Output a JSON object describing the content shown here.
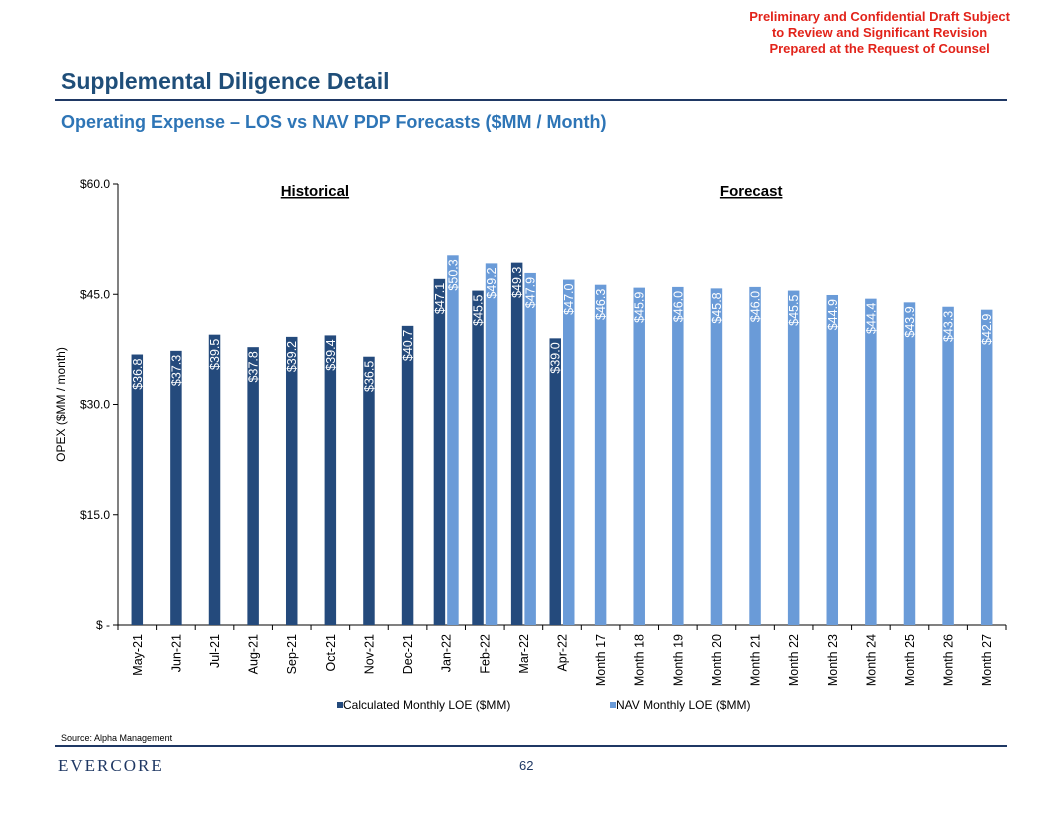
{
  "header": {
    "confidential_lines": [
      "Preliminary and Confidential Draft Subject",
      "to Review and Significant Revision",
      "Prepared at the Request of Counsel"
    ],
    "title": "Supplemental Diligence Detail",
    "subtitle": "Operating Expense – LOS vs NAV PDP Forecasts ($MM / Month)"
  },
  "chart_data": {
    "type": "bar",
    "ylabel": "OPEX ($MM / month)",
    "ylim": [
      0,
      60
    ],
    "yticks": [
      0,
      15,
      30,
      45,
      60
    ],
    "ytick_labels": [
      "$ -",
      "$15.0",
      "$30.0",
      "$45.0",
      "$60.0"
    ],
    "section_labels": [
      "Historical",
      "Forecast"
    ],
    "categories": [
      "May-21",
      "Jun-21",
      "Jul-21",
      "Aug-21",
      "Sep-21",
      "Oct-21",
      "Nov-21",
      "Dec-21",
      "Jan-22",
      "Feb-22",
      "Mar-22",
      "Apr-22",
      "Month 17",
      "Month 18",
      "Month 19",
      "Month 20",
      "Month 21",
      "Month 22",
      "Month 23",
      "Month 24",
      "Month 25",
      "Month 26",
      "Month 27"
    ],
    "series": [
      {
        "name": "Calculated Monthly LOE ($MM)",
        "color": "#244a7c",
        "values": [
          36.8,
          37.3,
          39.5,
          37.8,
          39.2,
          39.4,
          36.5,
          40.7,
          47.1,
          45.5,
          49.3,
          39.0,
          null,
          null,
          null,
          null,
          null,
          null,
          null,
          null,
          null,
          null,
          null
        ],
        "labels": [
          "$36.8",
          "$37.3",
          "$39.5",
          "$37.8",
          "$39.2",
          "$39.4",
          "$36.5",
          "$40.7",
          "$47.1",
          "$45.5",
          "$49.3",
          "$39.0",
          null,
          null,
          null,
          null,
          null,
          null,
          null,
          null,
          null,
          null,
          null
        ]
      },
      {
        "name": "NAV Monthly LOE ($MM)",
        "color": "#6a9bd8",
        "values": [
          null,
          null,
          null,
          null,
          null,
          null,
          null,
          null,
          50.3,
          49.2,
          47.9,
          47.0,
          46.3,
          45.9,
          46.0,
          45.8,
          46.0,
          45.5,
          44.9,
          44.4,
          43.9,
          43.3,
          42.9
        ],
        "labels": [
          null,
          null,
          null,
          null,
          null,
          null,
          null,
          null,
          "$50.3",
          "$49.2",
          "$47.9",
          "$47.0",
          "$46.3",
          "$45.9",
          "$46.0",
          "$45.8",
          "$46.0",
          "$45.5",
          "$44.9",
          "$44.4",
          "$43.9",
          "$43.3",
          "$42.9"
        ]
      }
    ]
  },
  "footer": {
    "source": "Source: Alpha Management",
    "logo": "EVERCORE",
    "page_number": "62"
  }
}
